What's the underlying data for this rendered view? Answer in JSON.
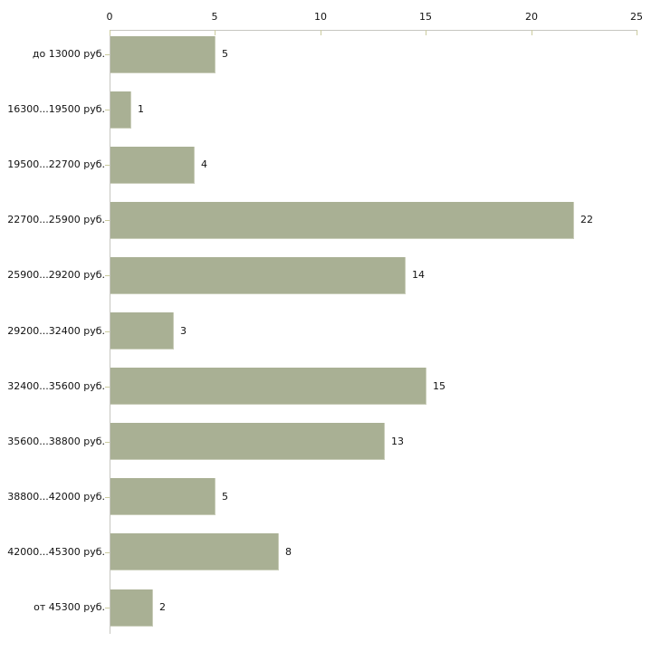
{
  "chart_data": {
    "type": "bar",
    "orientation": "horizontal",
    "title": "",
    "xlabel": "",
    "ylabel": "",
    "categories": [
      "до 13000 руб.",
      "16300...19500 руб.",
      "19500...22700 руб.",
      "22700...25900 руб.",
      "25900...29200 руб.",
      "29200...32400 руб.",
      "32400...35600 руб.",
      "35600...38800 руб.",
      "38800...42000 руб.",
      "42000...45300 руб.",
      "от 45300 руб."
    ],
    "values": [
      5,
      1,
      4,
      22,
      14,
      3,
      15,
      13,
      5,
      8,
      2
    ],
    "value_labels_shown": true,
    "x_ticks": [
      0,
      5,
      10,
      15,
      20,
      25
    ],
    "xlim": [
      0,
      25
    ],
    "grid": false,
    "legend": false,
    "axis_position": "top",
    "colors": {
      "bar": "#a9b094",
      "bar_edge": "#c9cdb9",
      "axis_line": "#c6c6c0",
      "tick_mark": "#cbcb9e",
      "text": "#111111",
      "background": "#ffffff"
    }
  }
}
